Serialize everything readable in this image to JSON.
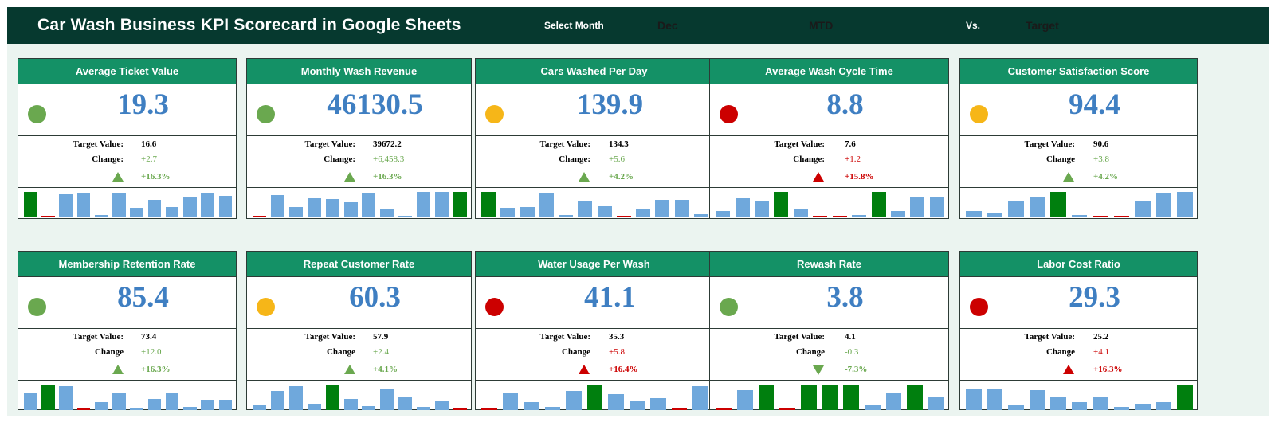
{
  "header": {
    "title": "Car Wash Business KPI Scorecard in Google Sheets",
    "select_month_label": "Select Month",
    "month_value": "Dec",
    "period_value": "MTD",
    "vs_label": "Vs.",
    "compare_value": "Target"
  },
  "colors": {
    "good": "#6aa84f",
    "warn": "#f6b618",
    "bad": "#cc0000",
    "bar_normal": "#6fa8dc",
    "bar_high": "#007f0e",
    "bar_low": "#cc0000"
  },
  "labels": {
    "target": "Target Value:",
    "change_colon": "Change:",
    "change": "Change"
  },
  "cards": [
    {
      "title": "Average Ticket Value",
      "value": "19.3",
      "status": "good",
      "target": "16.6",
      "change_label": "Change:",
      "change": "+2.7",
      "pct": "+16.3%",
      "direction": "up",
      "trend": "good",
      "bars": [
        {
          "v": 0.95,
          "k": "high"
        },
        {
          "v": 0.04,
          "k": "low"
        },
        {
          "v": 0.85,
          "k": "normal"
        },
        {
          "v": 0.88,
          "k": "normal"
        },
        {
          "v": 0.1,
          "k": "normal"
        },
        {
          "v": 0.87,
          "k": "normal"
        },
        {
          "v": 0.36,
          "k": "normal"
        },
        {
          "v": 0.66,
          "k": "normal"
        },
        {
          "v": 0.38,
          "k": "normal"
        },
        {
          "v": 0.74,
          "k": "normal"
        },
        {
          "v": 0.88,
          "k": "normal"
        },
        {
          "v": 0.78,
          "k": "normal"
        }
      ]
    },
    {
      "title": "Monthly Wash Revenue",
      "value": "46130.5",
      "status": "good",
      "target": "39672.2",
      "change_label": "Change:",
      "change": "+6,458.3",
      "pct": "+16.3%",
      "direction": "up",
      "trend": "good",
      "bars": [
        {
          "v": 0.04,
          "k": "low"
        },
        {
          "v": 0.82,
          "k": "normal"
        },
        {
          "v": 0.39,
          "k": "normal"
        },
        {
          "v": 0.72,
          "k": "normal"
        },
        {
          "v": 0.68,
          "k": "normal"
        },
        {
          "v": 0.55,
          "k": "normal"
        },
        {
          "v": 0.88,
          "k": "normal"
        },
        {
          "v": 0.28,
          "k": "normal"
        },
        {
          "v": 0.03,
          "k": "normal"
        },
        {
          "v": 0.95,
          "k": "normal"
        },
        {
          "v": 0.94,
          "k": "normal"
        },
        {
          "v": 0.95,
          "k": "high"
        }
      ]
    },
    {
      "title": "Cars Washed Per Day",
      "value": "139.9",
      "status": "warn",
      "target": "134.3",
      "change_label": "Change:",
      "change": "+5.6",
      "pct": "+4.2%",
      "direction": "up",
      "trend": "good",
      "bars": [
        {
          "v": 0.95,
          "k": "high"
        },
        {
          "v": 0.35,
          "k": "normal"
        },
        {
          "v": 0.38,
          "k": "normal"
        },
        {
          "v": 0.9,
          "k": "normal"
        },
        {
          "v": 0.08,
          "k": "normal"
        },
        {
          "v": 0.58,
          "k": "normal"
        },
        {
          "v": 0.42,
          "k": "normal"
        },
        {
          "v": 0.04,
          "k": "low"
        },
        {
          "v": 0.28,
          "k": "normal"
        },
        {
          "v": 0.66,
          "k": "normal"
        },
        {
          "v": 0.65,
          "k": "normal"
        },
        {
          "v": 0.12,
          "k": "normal"
        }
      ]
    },
    {
      "title": "Average Wash Cycle Time",
      "value": "8.8",
      "status": "bad",
      "target": "7.6",
      "change_label": "Change:",
      "change": "+1.2",
      "pct": "+15.8%",
      "direction": "up",
      "trend": "bad",
      "bars": [
        {
          "v": 0.25,
          "k": "normal"
        },
        {
          "v": 0.72,
          "k": "normal"
        },
        {
          "v": 0.62,
          "k": "normal"
        },
        {
          "v": 0.95,
          "k": "high"
        },
        {
          "v": 0.3,
          "k": "normal"
        },
        {
          "v": 0.03,
          "k": "low"
        },
        {
          "v": 0.03,
          "k": "low"
        },
        {
          "v": 0.1,
          "k": "normal"
        },
        {
          "v": 0.95,
          "k": "high"
        },
        {
          "v": 0.25,
          "k": "normal"
        },
        {
          "v": 0.77,
          "k": "normal"
        },
        {
          "v": 0.75,
          "k": "normal"
        }
      ]
    },
    {
      "title": "Customer Satisfaction Score",
      "value": "94.4",
      "status": "warn",
      "target": "90.6",
      "change_label": "Change",
      "change": "+3.8",
      "pct": "+4.2%",
      "direction": "up",
      "trend": "good",
      "bars": [
        {
          "v": 0.25,
          "k": "normal"
        },
        {
          "v": 0.18,
          "k": "normal"
        },
        {
          "v": 0.6,
          "k": "normal"
        },
        {
          "v": 0.75,
          "k": "normal"
        },
        {
          "v": 0.95,
          "k": "high"
        },
        {
          "v": 0.1,
          "k": "normal"
        },
        {
          "v": 0.03,
          "k": "low"
        },
        {
          "v": 0.03,
          "k": "low"
        },
        {
          "v": 0.58,
          "k": "normal"
        },
        {
          "v": 0.9,
          "k": "normal"
        },
        {
          "v": 0.95,
          "k": "normal"
        }
      ]
    },
    {
      "title": "Membership Retention Rate",
      "value": "85.4",
      "status": "good",
      "target": "73.4",
      "change_label": "Change",
      "change": "+12.0",
      "pct": "+16.3%",
      "direction": "up",
      "trend": "good",
      "bars": [
        {
          "v": 0.65,
          "k": "normal"
        },
        {
          "v": 0.95,
          "k": "high"
        },
        {
          "v": 0.88,
          "k": "normal"
        },
        {
          "v": 0.03,
          "k": "low"
        },
        {
          "v": 0.3,
          "k": "normal"
        },
        {
          "v": 0.66,
          "k": "normal"
        },
        {
          "v": 0.1,
          "k": "normal"
        },
        {
          "v": 0.42,
          "k": "normal"
        },
        {
          "v": 0.66,
          "k": "normal"
        },
        {
          "v": 0.12,
          "k": "normal"
        },
        {
          "v": 0.38,
          "k": "normal"
        },
        {
          "v": 0.38,
          "k": "normal"
        }
      ]
    },
    {
      "title": "Repeat Customer Rate",
      "value": "60.3",
      "status": "warn",
      "target": "57.9",
      "change_label": "Change",
      "change": "+2.4",
      "pct": "+4.1%",
      "direction": "up",
      "trend": "good",
      "bars": [
        {
          "v": 0.18,
          "k": "normal"
        },
        {
          "v": 0.7,
          "k": "normal"
        },
        {
          "v": 0.88,
          "k": "normal"
        },
        {
          "v": 0.2,
          "k": "normal"
        },
        {
          "v": 0.95,
          "k": "high"
        },
        {
          "v": 0.4,
          "k": "normal"
        },
        {
          "v": 0.15,
          "k": "normal"
        },
        {
          "v": 0.78,
          "k": "normal"
        },
        {
          "v": 0.5,
          "k": "normal"
        },
        {
          "v": 0.12,
          "k": "normal"
        },
        {
          "v": 0.35,
          "k": "normal"
        },
        {
          "v": 0.04,
          "k": "low"
        }
      ]
    },
    {
      "title": "Water Usage Per Wash",
      "value": "41.1",
      "status": "bad",
      "target": "35.3",
      "change_label": "Change",
      "change": "+5.8",
      "pct": "+16.4%",
      "direction": "up",
      "trend": "bad",
      "bars": [
        {
          "v": 0.03,
          "k": "low"
        },
        {
          "v": 0.65,
          "k": "normal"
        },
        {
          "v": 0.28,
          "k": "normal"
        },
        {
          "v": 0.12,
          "k": "normal"
        },
        {
          "v": 0.72,
          "k": "normal"
        },
        {
          "v": 0.95,
          "k": "high"
        },
        {
          "v": 0.58,
          "k": "normal"
        },
        {
          "v": 0.35,
          "k": "normal"
        },
        {
          "v": 0.45,
          "k": "normal"
        },
        {
          "v": 0.04,
          "k": "low"
        },
        {
          "v": 0.88,
          "k": "normal"
        }
      ]
    },
    {
      "title": "Rewash Rate",
      "value": "3.8",
      "status": "good",
      "target": "4.1",
      "change_label": "Change",
      "change": "-0.3",
      "pct": "-7.3%",
      "direction": "down",
      "trend": "good",
      "bars": [
        {
          "v": 0.04,
          "k": "low"
        },
        {
          "v": 0.75,
          "k": "normal"
        },
        {
          "v": 0.95,
          "k": "high"
        },
        {
          "v": 0.04,
          "k": "low"
        },
        {
          "v": 0.95,
          "k": "high"
        },
        {
          "v": 0.95,
          "k": "high"
        },
        {
          "v": 0.95,
          "k": "high"
        },
        {
          "v": 0.18,
          "k": "normal"
        },
        {
          "v": 0.62,
          "k": "normal"
        },
        {
          "v": 0.95,
          "k": "high"
        },
        {
          "v": 0.5,
          "k": "normal"
        }
      ]
    },
    {
      "title": "Labor Cost Ratio",
      "value": "29.3",
      "status": "bad",
      "target": "25.2",
      "change_label": "Change",
      "change": "+4.1",
      "pct": "+16.3%",
      "direction": "up",
      "trend": "bad",
      "bars": [
        {
          "v": 0.78,
          "k": "normal"
        },
        {
          "v": 0.78,
          "k": "normal"
        },
        {
          "v": 0.18,
          "k": "normal"
        },
        {
          "v": 0.75,
          "k": "normal"
        },
        {
          "v": 0.5,
          "k": "normal"
        },
        {
          "v": 0.3,
          "k": "normal"
        },
        {
          "v": 0.5,
          "k": "normal"
        },
        {
          "v": 0.12,
          "k": "normal"
        },
        {
          "v": 0.25,
          "k": "normal"
        },
        {
          "v": 0.3,
          "k": "normal"
        },
        {
          "v": 0.95,
          "k": "high"
        }
      ]
    }
  ]
}
